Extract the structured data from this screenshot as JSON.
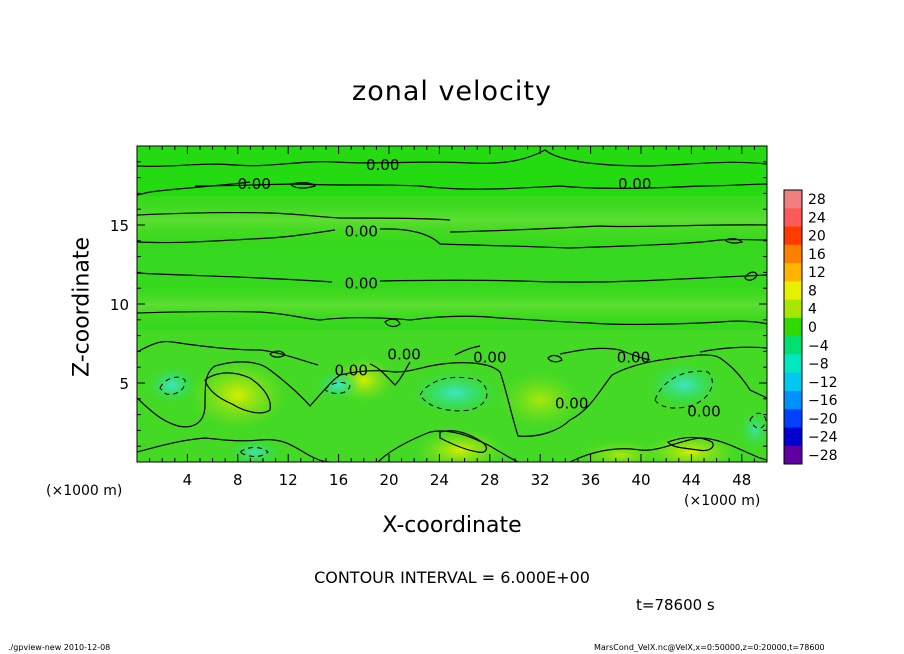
{
  "chart_data": {
    "type": "heatmap",
    "title": "zonal velocity",
    "xlabel": "X-coordinate",
    "ylabel": "Z-coordinate",
    "x_units": "(×1000 m)",
    "xlim": [
      0,
      50
    ],
    "ylim": [
      0,
      20
    ],
    "x_ticks": [
      4,
      8,
      12,
      16,
      20,
      24,
      28,
      32,
      36,
      40,
      44,
      48
    ],
    "y_ticks": [
      5,
      10,
      15
    ],
    "colorbar_levels": [
      28,
      24,
      20,
      16,
      12,
      8,
      4,
      0,
      -4,
      -8,
      -12,
      -16,
      -20,
      -24,
      -28
    ],
    "colorbar_colors": [
      "#f08080",
      "#ff5a5a",
      "#ff3b00",
      "#ff7f00",
      "#ffb400",
      "#e6f000",
      "#a8e600",
      "#32d800",
      "#00e070",
      "#00e8c0",
      "#00c8f0",
      "#0090ff",
      "#0040ff",
      "#0000d0",
      "#6000a0"
    ],
    "contour_labels": [
      {
        "text": "0.00",
        "x": 9.3,
        "y": 17.6
      },
      {
        "text": "0.00",
        "x": 19.5,
        "y": 18.8
      },
      {
        "text": "0.00",
        "x": 39.5,
        "y": 17.6
      },
      {
        "text": "0.00",
        "x": 17.8,
        "y": 14.6
      },
      {
        "text": "0.00",
        "x": 17.8,
        "y": 11.3
      },
      {
        "text": "0.00",
        "x": 21.2,
        "y": 6.8
      },
      {
        "text": "0.00",
        "x": 17.0,
        "y": 5.8
      },
      {
        "text": "0.00",
        "x": 28.0,
        "y": 6.6
      },
      {
        "text": "0.00",
        "x": 39.4,
        "y": 6.6
      },
      {
        "text": "0.00",
        "x": 34.5,
        "y": 3.7
      },
      {
        "text": "0.00",
        "x": 45.0,
        "y": 3.2
      }
    ],
    "contour_interval_text": "CONTOUR INTERVAL = 6.000E+00",
    "time_text": "t=78600 s"
  },
  "footer": {
    "left": "./gpview-new  2010-12-08",
    "right": "MarsCond_VelX.nc@VelX,x=0:50000,z=0:20000,t=78600"
  }
}
